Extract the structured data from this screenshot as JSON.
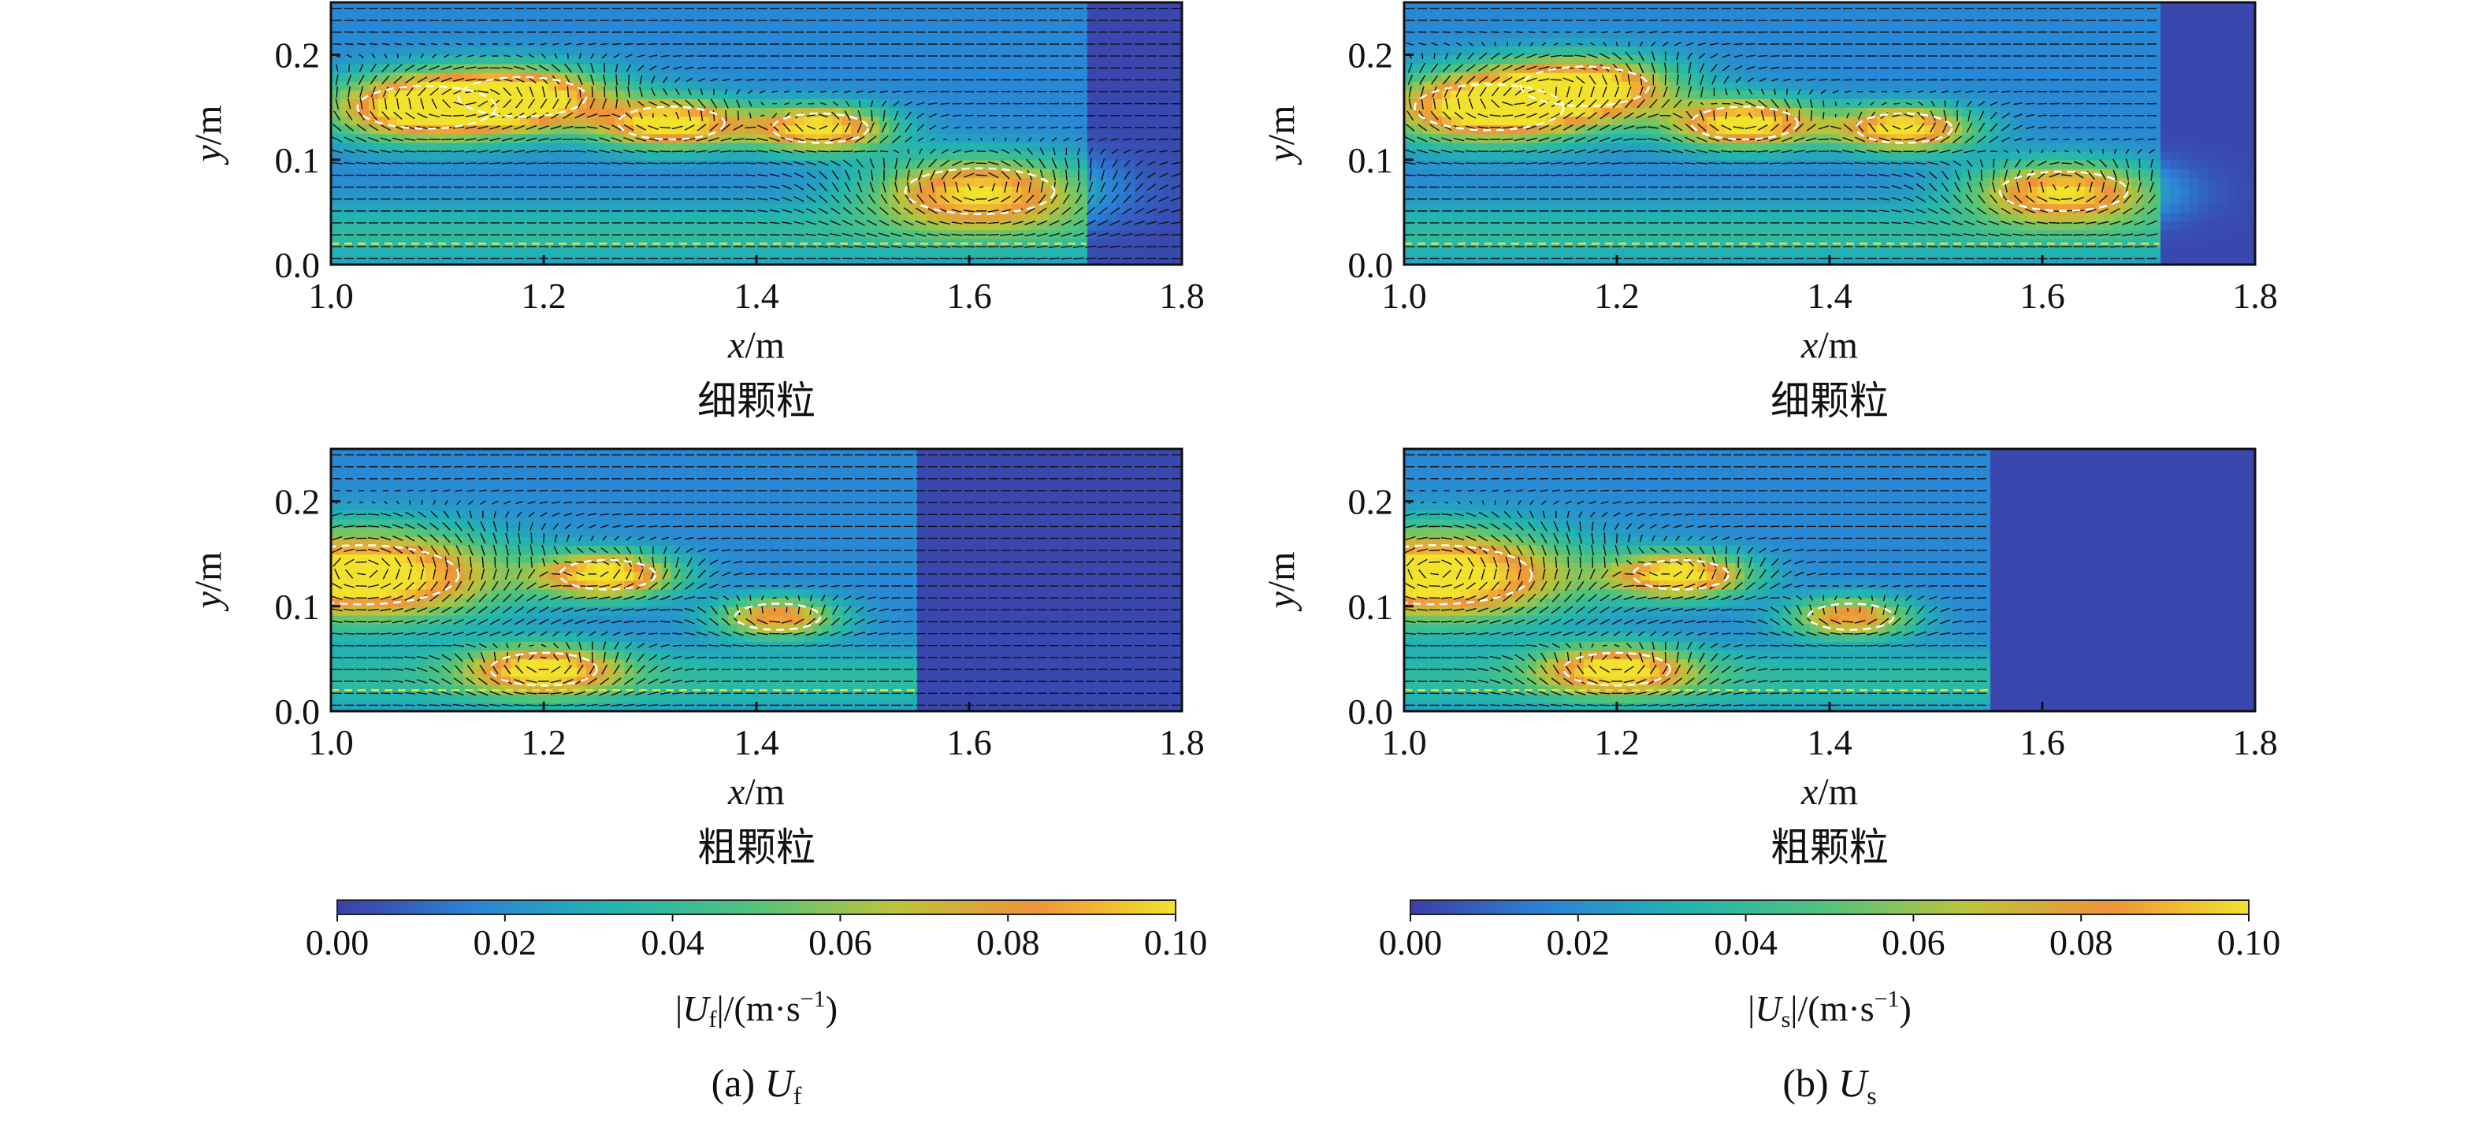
{
  "figure": {
    "panels": [
      {
        "id": "a",
        "field": "Uf",
        "caption_prefix": "(a) ",
        "caption_symbol": "U",
        "caption_sub": "f",
        "colorbar": {
          "label_symbol": "U",
          "label_sub": "f",
          "label_unit": "/(m·s",
          "label_exp": "−1",
          "label_close": ")",
          "ticks": [
            "0.00",
            "0.02",
            "0.04",
            "0.06",
            "0.08",
            "0.10"
          ]
        }
      },
      {
        "id": "b",
        "field": "Us",
        "caption_prefix": "(b) ",
        "caption_symbol": "U",
        "caption_sub": "s",
        "colorbar": {
          "label_symbol": "U",
          "label_sub": "s",
          "label_unit": "/(m·s",
          "label_exp": "−1",
          "label_close": ")",
          "ticks": [
            "0.00",
            "0.02",
            "0.04",
            "0.06",
            "0.08",
            "0.10"
          ]
        }
      }
    ],
    "colormap": [
      "#3b3fa8",
      "#2a84d9",
      "#22b5b0",
      "#52c47a",
      "#bcc43a",
      "#f0923a",
      "#f2e22c"
    ]
  },
  "chart_data": [
    {
      "type": "heatmap",
      "panel": "a",
      "subtitle": "细颗粒",
      "x_label_var": "x",
      "x_label_unit": "/m",
      "y_label_var": "y",
      "y_label_unit": "/m",
      "xlim": [
        1.0,
        1.8
      ],
      "ylim": [
        0.0,
        0.25
      ],
      "x_ticks": [
        "1.0",
        "1.2",
        "1.4",
        "1.6",
        "1.8"
      ],
      "y_ticks": [
        "0.0",
        "0.1",
        "0.2"
      ],
      "colorbar_range": [
        0.0,
        0.1
      ],
      "front_x": 1.71,
      "vortices": [
        {
          "x": 1.09,
          "y": 0.15,
          "r": 0.065,
          "strength": 0.095
        },
        {
          "x": 1.18,
          "y": 0.16,
          "r": 0.06,
          "strength": 0.085
        },
        {
          "x": 1.32,
          "y": 0.135,
          "r": 0.05,
          "strength": 0.09
        },
        {
          "x": 1.46,
          "y": 0.13,
          "r": 0.045,
          "strength": 0.09
        },
        {
          "x": 1.61,
          "y": 0.07,
          "r": 0.07,
          "strength": 0.08
        }
      ]
    },
    {
      "type": "heatmap",
      "panel": "b",
      "subtitle": "细颗粒",
      "x_label_var": "x",
      "x_label_unit": "/m",
      "y_label_var": "y",
      "y_label_unit": "/m",
      "xlim": [
        1.0,
        1.8
      ],
      "ylim": [
        0.0,
        0.25
      ],
      "x_ticks": [
        "1.0",
        "1.2",
        "1.4",
        "1.6",
        "1.8"
      ],
      "y_ticks": [
        "0.0",
        "0.1",
        "0.2"
      ],
      "colorbar_range": [
        0.0,
        0.1
      ],
      "front_x": 1.71,
      "vortices": [
        {
          "x": 1.08,
          "y": 0.15,
          "r": 0.07,
          "strength": 0.095
        },
        {
          "x": 1.17,
          "y": 0.17,
          "r": 0.06,
          "strength": 0.085
        },
        {
          "x": 1.32,
          "y": 0.135,
          "r": 0.05,
          "strength": 0.09
        },
        {
          "x": 1.47,
          "y": 0.13,
          "r": 0.045,
          "strength": 0.09
        },
        {
          "x": 1.62,
          "y": 0.07,
          "r": 0.06,
          "strength": 0.08
        }
      ]
    },
    {
      "type": "heatmap",
      "panel": "a",
      "subtitle": "粗颗粒",
      "x_label_var": "x",
      "x_label_unit": "/m",
      "y_label_var": "y",
      "y_label_unit": "/m",
      "xlim": [
        1.0,
        1.8
      ],
      "ylim": [
        0.0,
        0.25
      ],
      "x_ticks": [
        "1.0",
        "1.2",
        "1.4",
        "1.6",
        "1.8"
      ],
      "y_ticks": [
        "0.0",
        "0.1",
        "0.2"
      ],
      "colorbar_range": [
        0.0,
        0.1
      ],
      "front_x": 1.55,
      "vortices": [
        {
          "x": 1.03,
          "y": 0.13,
          "r": 0.09,
          "strength": 0.1
        },
        {
          "x": 1.26,
          "y": 0.13,
          "r": 0.045,
          "strength": 0.09
        },
        {
          "x": 1.42,
          "y": 0.09,
          "r": 0.04,
          "strength": 0.07
        },
        {
          "x": 1.2,
          "y": 0.04,
          "r": 0.05,
          "strength": 0.075
        }
      ]
    },
    {
      "type": "heatmap",
      "panel": "b",
      "subtitle": "粗颗粒",
      "x_label_var": "x",
      "x_label_unit": "/m",
      "y_label_var": "y",
      "y_label_unit": "/m",
      "xlim": [
        1.0,
        1.8
      ],
      "ylim": [
        0.0,
        0.25
      ],
      "x_ticks": [
        "1.0",
        "1.2",
        "1.4",
        "1.6",
        "1.8"
      ],
      "y_ticks": [
        "0.0",
        "0.1",
        "0.2"
      ],
      "colorbar_range": [
        0.0,
        0.1
      ],
      "front_x": 1.55,
      "vortices": [
        {
          "x": 1.03,
          "y": 0.13,
          "r": 0.09,
          "strength": 0.1
        },
        {
          "x": 1.26,
          "y": 0.13,
          "r": 0.045,
          "strength": 0.09
        },
        {
          "x": 1.42,
          "y": 0.09,
          "r": 0.04,
          "strength": 0.07
        },
        {
          "x": 1.2,
          "y": 0.04,
          "r": 0.05,
          "strength": 0.075
        }
      ]
    }
  ]
}
